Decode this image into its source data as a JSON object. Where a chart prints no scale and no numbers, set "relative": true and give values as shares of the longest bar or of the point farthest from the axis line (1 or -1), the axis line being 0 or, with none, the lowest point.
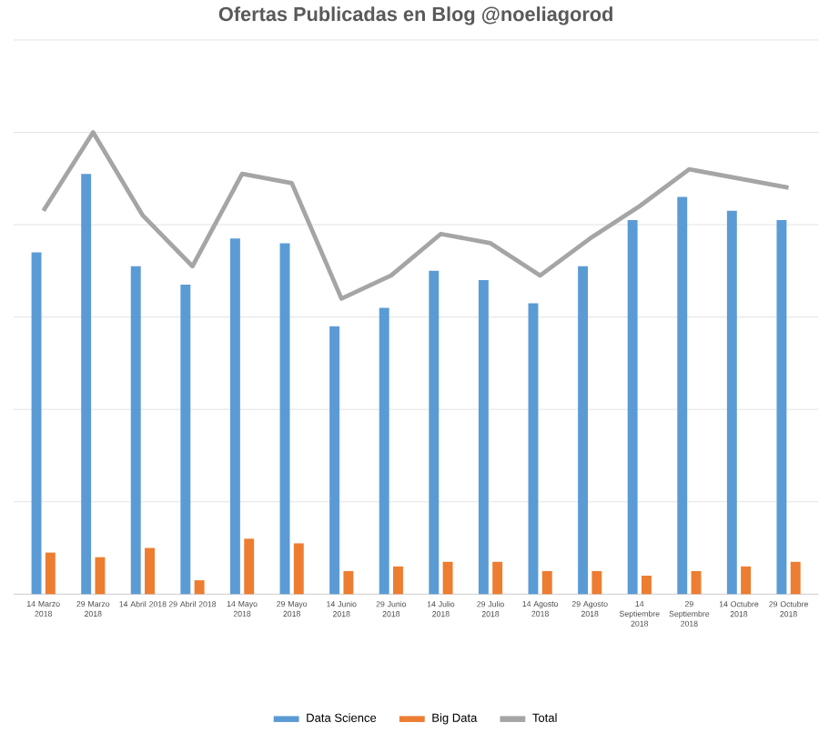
{
  "chart_data": {
    "type": "bar",
    "title": "Ofertas Publicadas en Blog @noeliagorod",
    "relative": true,
    "grid": "y",
    "legend": "bottom",
    "categories": [
      "14 Marzo 2018",
      "29 Marzo 2018",
      "14 Abril 2018",
      "29 Abril 2018",
      "14 Mayo 2018",
      "29 Mayo 2018",
      "14 Junio 2018",
      "29 Junio 2018",
      "14 Julio 2018",
      "29 Julio 2018",
      "14 Agosto 2018",
      "29 Agosto 2018",
      "14 Septiembre 2018",
      "29 Septiembre 2018",
      "14 Octubre 2018",
      "29 Octubre 2018"
    ],
    "series": [
      {
        "name": "Data Science",
        "color": "#5b9bd5",
        "values": [
          0.74,
          0.91,
          0.71,
          0.67,
          0.77,
          0.76,
          0.58,
          0.62,
          0.7,
          0.68,
          0.63,
          0.71,
          0.81,
          0.86,
          0.83,
          0.81
        ]
      },
      {
        "name": "Big Data",
        "color": "#ed7d31",
        "values": [
          0.09,
          0.08,
          0.1,
          0.03,
          0.12,
          0.11,
          0.05,
          0.06,
          0.07,
          0.07,
          0.05,
          0.05,
          0.04,
          0.05,
          0.06,
          0.07
        ]
      },
      {
        "name": "Total",
        "type": "line",
        "color": "#a5a5a5",
        "values": [
          0.83,
          1,
          0.82,
          0.71,
          0.91,
          0.89,
          0.64,
          0.69,
          0.78,
          0.76,
          0.69,
          0.77,
          0.84,
          0.92,
          0.9,
          0.88
        ]
      }
    ]
  }
}
